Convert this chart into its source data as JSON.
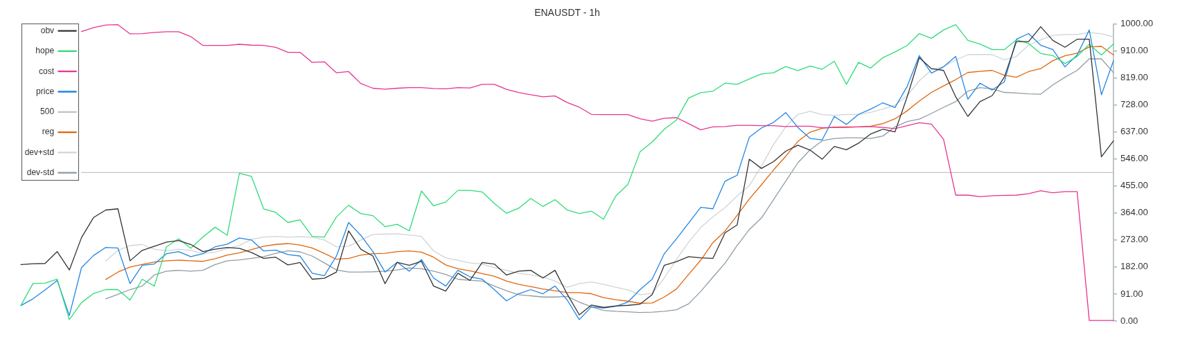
{
  "chart_data": {
    "type": "line",
    "title": "ENAUSDT - 1h",
    "categories": [
      null,
      null,
      null,
      null,
      null,
      null,
      null,
      null,
      null,
      null,
      null,
      null,
      null,
      null,
      null,
      null,
      null,
      null,
      null,
      null,
      null,
      null,
      null,
      null,
      null,
      null,
      null,
      null,
      null,
      null,
      null,
      null,
      null,
      null,
      null,
      null,
      null,
      null,
      null,
      null,
      null,
      null,
      null,
      null,
      null,
      null,
      null,
      null,
      null,
      null,
      null,
      null,
      null,
      null,
      null,
      null,
      null,
      null,
      null,
      null,
      null,
      null,
      null,
      null,
      null,
      null,
      null,
      null,
      null,
      null,
      null,
      null,
      null,
      null,
      null,
      null,
      null,
      null,
      null,
      null,
      null,
      null,
      null,
      null,
      null,
      null,
      null,
      null,
      null,
      null,
      null
    ],
    "series": [
      {
        "name": "obv",
        "color": "#333333",
        "values": [
          190,
          193,
          194,
          234,
          172,
          281,
          349,
          374,
          378,
          203,
          238,
          252,
          266,
          271,
          258,
          234,
          242,
          248,
          245,
          231,
          211,
          215,
          189,
          197,
          141,
          144,
          165,
          304,
          242,
          219,
          126,
          198,
          188,
          201,
          118,
          101,
          161,
          137,
          197,
          192,
          155,
          168,
          171,
          145,
          171,
          91,
          21,
          54,
          46,
          51,
          53,
          57,
          89,
          188,
          200,
          217,
          213,
          211,
          297,
          324,
          545,
          514,
          537,
          572,
          592,
          576,
          545,
          588,
          577,
          599,
          630,
          646,
          637,
          755,
          887,
          850,
          844,
          755,
          689,
          739,
          759,
          821,
          941,
          941,
          991,
          945,
          922,
          949,
          949,
          553,
          607
        ]
      },
      {
        "name": "hope",
        "color": "#2edb78",
        "values": [
          52,
          126,
          128,
          141,
          5,
          62,
          93,
          106,
          106,
          71,
          141,
          118,
          250,
          277,
          245,
          283,
          316,
          289,
          498,
          487,
          378,
          366,
          332,
          341,
          285,
          283,
          351,
          390,
          362,
          355,
          318,
          326,
          304,
          438,
          388,
          401,
          440,
          440,
          435,
          396,
          363,
          380,
          413,
          386,
          409,
          374,
          362,
          370,
          343,
          421,
          460,
          570,
          603,
          646,
          677,
          751,
          769,
          774,
          801,
          797,
          815,
          832,
          836,
          857,
          843,
          859,
          848,
          875,
          797,
          871,
          852,
          887,
          906,
          928,
          968,
          952,
          980,
          998,
          945,
          933,
          914,
          914,
          947,
          935,
          901,
          894,
          867,
          891,
          932,
          896,
          933
        ]
      },
      {
        "name": "cost",
        "color": "#e8338f",
        "values": [
          null,
          null,
          null,
          null,
          null,
          975,
          988,
          997,
          998,
          967,
          968,
          972,
          974,
          974,
          958,
          928,
          928,
          928,
          932,
          929,
          928,
          922,
          905,
          905,
          871,
          873,
          836,
          840,
          800,
          784,
          781,
          784,
          786,
          786,
          783,
          782,
          786,
          785,
          797,
          797,
          780,
          770,
          762,
          755,
          758,
          736,
          720,
          696,
          695,
          695,
          695,
          681,
          673,
          683,
          685,
          665,
          644,
          654,
          655,
          659,
          659,
          658,
          658,
          655,
          656,
          656,
          651,
          652,
          652,
          654,
          655,
          652,
          648,
          658,
          668,
          663,
          612,
          424,
          424,
          419,
          422,
          423,
          424,
          429,
          439,
          432,
          436,
          436,
          2,
          2,
          2
        ]
      },
      {
        "name": "price",
        "color": "#2186e3",
        "values": [
          52,
          75,
          105,
          137,
          19,
          180,
          221,
          248,
          246,
          126,
          188,
          192,
          227,
          234,
          217,
          227,
          250,
          259,
          280,
          273,
          236,
          239,
          224,
          219,
          161,
          153,
          219,
          332,
          289,
          234,
          165,
          198,
          168,
          207,
          145,
          118,
          171,
          149,
          141,
          106,
          68,
          92,
          106,
          92,
          118,
          71,
          5,
          48,
          44,
          50,
          64,
          106,
          141,
          227,
          277,
          330,
          383,
          378,
          471,
          491,
          619,
          650,
          669,
          702,
          652,
          615,
          610,
          689,
          662,
          696,
          714,
          735,
          719,
          790,
          894,
          835,
          856,
          891,
          747,
          801,
          778,
          805,
          949,
          968,
          929,
          914,
          856,
          896,
          980,
          762,
          877
        ]
      },
      {
        "name": "500",
        "color": "#c2c2c2",
        "values": [
          null,
          null,
          null,
          null,
          null,
          500,
          500,
          500,
          500,
          500,
          500,
          500,
          500,
          500,
          500,
          500,
          500,
          500,
          500,
          500,
          500,
          500,
          500,
          500,
          500,
          500,
          500,
          500,
          500,
          500,
          500,
          500,
          500,
          500,
          500,
          500,
          500,
          500,
          500,
          500,
          500,
          500,
          500,
          500,
          500,
          500,
          500,
          500,
          500,
          500,
          500,
          500,
          500,
          500,
          500,
          500,
          500,
          500,
          500,
          500,
          500,
          500,
          500,
          500,
          500,
          500,
          500,
          500,
          500,
          500,
          500,
          500,
          500,
          500,
          500,
          500,
          500,
          500,
          500,
          500,
          500,
          500,
          500,
          500,
          500,
          500,
          500,
          500,
          500,
          500,
          500
        ]
      },
      {
        "name": "reg",
        "color": "#e0660a",
        "values": [
          null,
          null,
          null,
          null,
          null,
          null,
          null,
          140,
          165,
          182,
          191,
          199,
          203,
          205,
          203,
          201,
          210,
          222,
          230,
          241,
          252,
          258,
          261,
          256,
          246,
          228,
          208,
          211,
          222,
          227,
          228,
          234,
          236,
          232,
          215,
          189,
          176,
          169,
          160,
          151,
          135,
          124,
          116,
          108,
          102,
          96,
          96,
          92,
          79,
          72,
          67,
          60,
          61,
          81,
          108,
          157,
          205,
          264,
          303,
          356,
          411,
          459,
          509,
          555,
          605,
          636,
          649,
          653,
          654,
          654,
          656,
          665,
          681,
          708,
          741,
          770,
          792,
          813,
          837,
          841,
          844,
          828,
          821,
          840,
          850,
          877,
          893,
          902,
          923,
          925,
          896
        ]
      },
      {
        "name": "dev+std",
        "color": "#cfd4d8",
        "values": [
          null,
          null,
          null,
          null,
          null,
          null,
          null,
          202,
          238,
          254,
          258,
          242,
          237,
          242,
          238,
          228,
          232,
          244,
          255,
          275,
          283,
          285,
          283,
          284,
          283,
          273,
          250,
          252,
          273,
          292,
          293,
          294,
          290,
          285,
          236,
          213,
          205,
          196,
          192,
          180,
          171,
          161,
          156,
          149,
          135,
          114,
          126,
          132,
          124,
          114,
          105,
          89,
          93,
          145,
          207,
          266,
          315,
          351,
          382,
          421,
          456,
          522,
          595,
          654,
          696,
          706,
          695,
          693,
          696,
          696,
          703,
          714,
          727,
          759,
          809,
          846,
          857,
          879,
          897,
          898,
          897,
          880,
          891,
          929,
          947,
          962,
          965,
          965,
          972,
          967,
          957
        ]
      },
      {
        "name": "dev-std",
        "color": "#8f9ca5",
        "values": [
          null,
          null,
          null,
          null,
          null,
          null,
          null,
          75,
          90,
          106,
          118,
          155,
          168,
          171,
          168,
          171,
          190,
          203,
          206,
          211,
          217,
          228,
          237,
          233,
          219,
          196,
          172,
          165,
          165,
          166,
          168,
          172,
          179,
          176,
          168,
          157,
          141,
          137,
          135,
          118,
          102,
          89,
          85,
          81,
          81,
          83,
          64,
          48,
          36,
          33,
          31,
          29,
          30,
          33,
          38,
          58,
          100,
          148,
          195,
          255,
          308,
          347,
          409,
          471,
          533,
          576,
          607,
          615,
          617,
          617,
          615,
          623,
          654,
          672,
          680,
          699,
          720,
          739,
          774,
          786,
          782,
          770,
          768,
          765,
          764,
          795,
          821,
          844,
          883,
          883,
          836
        ]
      }
    ],
    "ylim": [
      0,
      1000
    ],
    "yticks": [
      {
        "value": 0,
        "label": "0.00"
      },
      {
        "value": 91,
        "label": "91.00"
      },
      {
        "value": 182,
        "label": "182.00"
      },
      {
        "value": 273,
        "label": "273.00"
      },
      {
        "value": 364,
        "label": "364.00"
      },
      {
        "value": 455,
        "label": "455.00"
      },
      {
        "value": 546,
        "label": "546.00"
      },
      {
        "value": 637,
        "label": "637.00"
      },
      {
        "value": 728,
        "label": "728.00"
      },
      {
        "value": 819,
        "label": "819.00"
      },
      {
        "value": 910,
        "label": "910.00"
      },
      {
        "value": 1000,
        "label": "1000.00"
      }
    ],
    "legend": "top left",
    "tick_labels": "y"
  }
}
